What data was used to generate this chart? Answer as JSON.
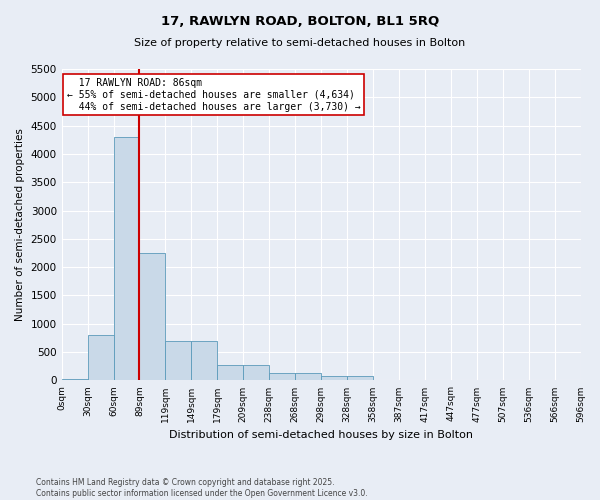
{
  "title": "17, RAWLYN ROAD, BOLTON, BL1 5RQ",
  "subtitle": "Size of property relative to semi-detached houses in Bolton",
  "xlabel": "Distribution of semi-detached houses by size in Bolton",
  "ylabel": "Number of semi-detached properties",
  "property_label": "17 RAWLYN ROAD: 86sqm",
  "pct_smaller": "55% of semi-detached houses are smaller (4,634)",
  "pct_larger": "44% of semi-detached houses are larger (3,730)",
  "property_bin_index": 2,
  "bin_labels": [
    "0sqm",
    "30sqm",
    "60sqm",
    "89sqm",
    "119sqm",
    "149sqm",
    "179sqm",
    "209sqm",
    "238sqm",
    "268sqm",
    "298sqm",
    "328sqm",
    "358sqm",
    "387sqm",
    "417sqm",
    "447sqm",
    "477sqm",
    "507sqm",
    "536sqm",
    "566sqm",
    "596sqm"
  ],
  "counts": [
    25,
    800,
    4300,
    2250,
    700,
    700,
    270,
    270,
    130,
    130,
    80,
    70,
    0,
    0,
    0,
    0,
    0,
    0,
    0,
    0
  ],
  "bar_color": "#c9d9e8",
  "bar_edge_color": "#5b9aba",
  "marker_line_color": "#cc0000",
  "box_edge_color": "#cc0000",
  "ylim": [
    0,
    5500
  ],
  "yticks": [
    0,
    500,
    1000,
    1500,
    2000,
    2500,
    3000,
    3500,
    4000,
    4500,
    5000,
    5500
  ],
  "background_color": "#e8edf5",
  "grid_color": "#ffffff",
  "footer_line1": "Contains HM Land Registry data © Crown copyright and database right 2025.",
  "footer_line2": "Contains public sector information licensed under the Open Government Licence v3.0."
}
